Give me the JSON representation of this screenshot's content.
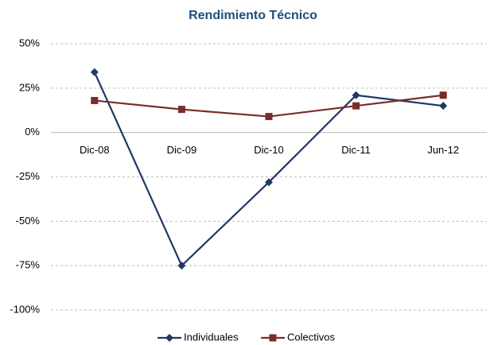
{
  "chart_data": {
    "type": "line",
    "title": "Rendimiento Técnico",
    "categories": [
      "Dic-08",
      "Dic-09",
      "Dic-10",
      "Dic-11",
      "Jun-12"
    ],
    "series": [
      {
        "name": "Individuales",
        "color": "#1f3864",
        "marker": "diamond",
        "values": [
          34,
          -75,
          -28,
          21,
          15
        ]
      },
      {
        "name": "Colectivos",
        "color": "#7b2c2c",
        "marker": "square",
        "values": [
          18,
          13,
          9,
          15,
          21
        ]
      }
    ],
    "ylim": [
      -100,
      50
    ],
    "yticks": [
      {
        "value": -100,
        "label": "-100%"
      },
      {
        "value": -75,
        "label": "-75%"
      },
      {
        "value": -50,
        "label": "-50%"
      },
      {
        "value": -25,
        "label": "-25%"
      },
      {
        "value": 0,
        "label": "0%"
      },
      {
        "value": 25,
        "label": "25%"
      },
      {
        "value": 50,
        "label": "50%"
      }
    ],
    "grid": true,
    "legend": "bottom"
  }
}
